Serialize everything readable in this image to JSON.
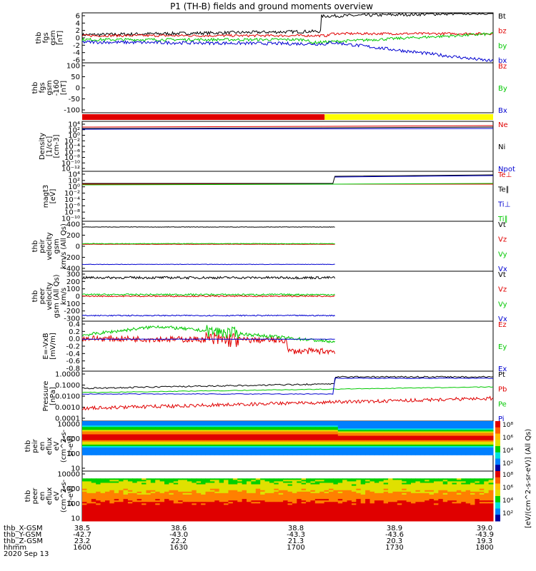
{
  "title": "P1 (TH-B) fields and ground moments overview",
  "colors": {
    "black": "#000000",
    "red": "#e00000",
    "green": "#00c800",
    "blue": "#0000d0",
    "yellow": "#ffff00"
  },
  "chart_data": [
    {
      "id": "p1",
      "type": "line",
      "ylabel": [
        "thb",
        "fgs",
        "gsm",
        "[nT]"
      ],
      "yticks": [
        "6",
        "4",
        "2",
        "0",
        "-2",
        "-4",
        "-6"
      ],
      "ylim": [
        -6,
        6.5
      ],
      "series": [
        {
          "name": "Bt",
          "color": "black"
        },
        {
          "name": "bz",
          "color": "red"
        },
        {
          "name": "by",
          "color": "green"
        },
        {
          "name": "bx",
          "color": "blue"
        }
      ]
    },
    {
      "id": "p2",
      "type": "line",
      "ylabel": [
        "thb",
        "fgs",
        "gsm",
        "-160",
        "[nT]"
      ],
      "yticks": [
        "100",
        "50",
        "0",
        "-50",
        "-100"
      ],
      "ylim": [
        -130,
        110
      ],
      "series": [
        {
          "name": "Bz",
          "color": "red"
        },
        {
          "name": "By",
          "color": "green"
        },
        {
          "name": "Bx",
          "color": "blue"
        }
      ]
    },
    {
      "id": "bar",
      "type": "bar",
      "segments": [
        {
          "from": "16:00",
          "to": "17:10",
          "color": "red"
        },
        {
          "from": "17:10",
          "to": "18:00",
          "color": "yellow"
        }
      ]
    },
    {
      "id": "p3",
      "type": "line",
      "ylabel": [
        "Density",
        "[1/cc]",
        "[cm-3]"
      ],
      "yticks": [
        "10⁴",
        "10²",
        "10⁰",
        "10⁻²",
        "10⁻⁴",
        "10⁻⁶",
        "10⁻⁸",
        "10⁻¹⁰",
        "10⁻¹²"
      ],
      "log": true,
      "series": [
        {
          "name": "Ne",
          "color": "red"
        },
        {
          "name": "Ni",
          "color": "black"
        },
        {
          "name": "Npot",
          "color": "blue"
        }
      ]
    },
    {
      "id": "p4",
      "type": "line",
      "ylabel": [
        "magt3",
        "[eV]"
      ],
      "yticks": [
        "10⁴",
        "10²",
        "10⁰",
        "10⁻²",
        "10⁻⁴",
        "10⁻⁶",
        "10⁻⁸",
        "10⁻¹⁰"
      ],
      "log": true,
      "series": [
        {
          "name": "Te⊥",
          "color": "red"
        },
        {
          "name": "Te∥",
          "color": "black"
        },
        {
          "name": "Ti⊥",
          "color": "blue"
        },
        {
          "name": "Ti∥",
          "color": "green"
        }
      ]
    },
    {
      "id": "p5",
      "type": "line",
      "ylabel": [
        "thb",
        "peir",
        "velocity",
        "gsm",
        "km/s (All Qs)"
      ],
      "yticks": [
        "400",
        "200",
        "0",
        "-200",
        "-400"
      ],
      "ylim": [
        -450,
        420
      ],
      "series": [
        {
          "name": "Vt",
          "color": "black"
        },
        {
          "name": "Vz",
          "color": "red"
        },
        {
          "name": "Vy",
          "color": "green"
        },
        {
          "name": "Vx",
          "color": "blue"
        }
      ]
    },
    {
      "id": "p6",
      "type": "line",
      "ylabel": [
        "thb",
        "peer",
        "velocity",
        "gsm (All Qs)",
        "km/s"
      ],
      "yticks": [
        "300",
        "200",
        "100",
        "0",
        "-100",
        "-200",
        "-300"
      ],
      "ylim": [
        -300,
        320
      ],
      "series": [
        {
          "name": "Vt",
          "color": "black"
        },
        {
          "name": "Vz",
          "color": "red"
        },
        {
          "name": "Vy",
          "color": "green"
        },
        {
          "name": "Vx",
          "color": "blue"
        }
      ]
    },
    {
      "id": "p7",
      "type": "line",
      "ylabel": [
        "E=-VxB",
        "[mV/m]"
      ],
      "yticks": [
        "0.4",
        "0.2",
        "0.0",
        "-0.2",
        "-0.4",
        "-0.6",
        "-0.8"
      ],
      "ylim": [
        -0.8,
        0.45
      ],
      "series": [
        {
          "name": "Ez",
          "color": "red"
        },
        {
          "name": "Ey",
          "color": "green"
        },
        {
          "name": "Ex",
          "color": "blue"
        }
      ]
    },
    {
      "id": "p8",
      "type": "line",
      "ylabel": [
        "Pressure",
        "[nPa]"
      ],
      "yticks": [
        "1.0000",
        "0.1000",
        "0.0100",
        "0.0010",
        "0.0001"
      ],
      "log": true,
      "series": [
        {
          "name": "Pt",
          "color": "black"
        },
        {
          "name": "Pb",
          "color": "red"
        },
        {
          "name": "Pe",
          "color": "green"
        },
        {
          "name": "Pi",
          "color": "blue"
        }
      ]
    },
    {
      "id": "p9",
      "type": "heatmap",
      "ylabel": [
        "thb",
        "peir",
        "en",
        "eflux",
        "eV",
        "(cm^2-s-",
        "sr-eV)"
      ],
      "yticks": [
        "10000",
        "1000",
        "100",
        "10"
      ]
    },
    {
      "id": "p10",
      "type": "heatmap",
      "ylabel": [
        "thb",
        "peer",
        "en",
        "eflux",
        "eV",
        "(cm^2-s-",
        "sr-eV)"
      ],
      "yticks": [
        "10000",
        "1000",
        "100",
        "10"
      ]
    }
  ],
  "colorbar": {
    "ticks": [
      "10⁸",
      "10⁶",
      "10⁴",
      "10²"
    ],
    "label": "[eV/(cm^2-s-sr-eV)] (All Qs)",
    "upper_ticks": [
      "10⁸",
      "10⁶",
      "10⁴",
      "10²"
    ]
  },
  "ephemeris": {
    "labels": [
      "thb_X-GSM",
      "thb_Y-GSM",
      "thb_Z-GSM",
      "hhmm",
      "2020 Sep 13"
    ],
    "x": [
      "38.5",
      "38.6",
      "38.8",
      "38.9",
      "39.0"
    ],
    "y": [
      "-42.7",
      "-43.0",
      "-43.3",
      "-43.6",
      "-43.9"
    ],
    "z": [
      "23.2",
      "22.2",
      "21.3",
      "20.3",
      "19.3"
    ],
    "hhmm": [
      "1600",
      "1630",
      "1700",
      "1730",
      "1800"
    ]
  }
}
